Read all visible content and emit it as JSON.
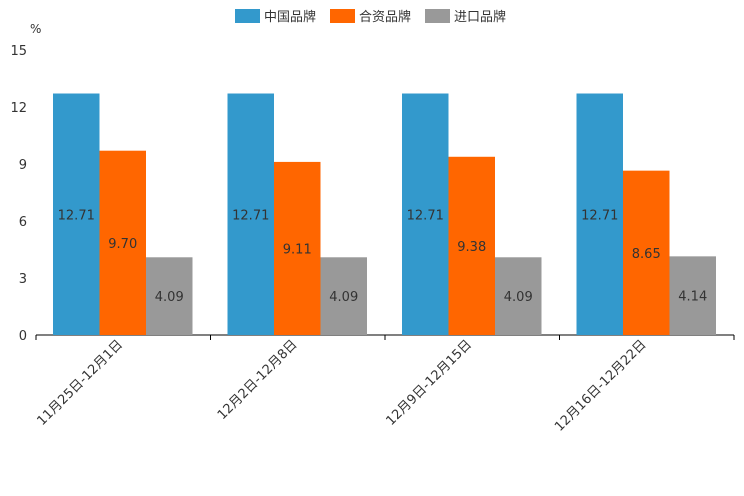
{
  "chart_data": {
    "type": "bar",
    "title": "",
    "ylabel": "%",
    "xlabel": "",
    "ylim": [
      0,
      15
    ],
    "yticks": [
      0,
      3,
      6,
      9,
      12,
      15
    ],
    "grid": false,
    "legend_position": "top-center",
    "categories": [
      "11月25日-12月1日",
      "12月2日-12月8日",
      "12月9日-12月15日",
      "12月16日-12月22日"
    ],
    "series": [
      {
        "name": "中国品牌",
        "color": "#3399cc",
        "values": [
          12.71,
          12.71,
          12.71,
          12.71
        ],
        "labels": [
          "12.71",
          "12.71",
          "12.71",
          "12.71"
        ]
      },
      {
        "name": "合资品牌",
        "color": "#ff6600",
        "values": [
          9.7,
          9.11,
          9.38,
          8.65
        ],
        "labels": [
          "9.70",
          "9.11",
          "9.38",
          "8.65"
        ]
      },
      {
        "name": "进口品牌",
        "color": "#999999",
        "values": [
          4.09,
          4.09,
          4.09,
          4.14
        ],
        "labels": [
          "4.09",
          "4.09",
          "4.09",
          "4.14"
        ]
      }
    ]
  }
}
